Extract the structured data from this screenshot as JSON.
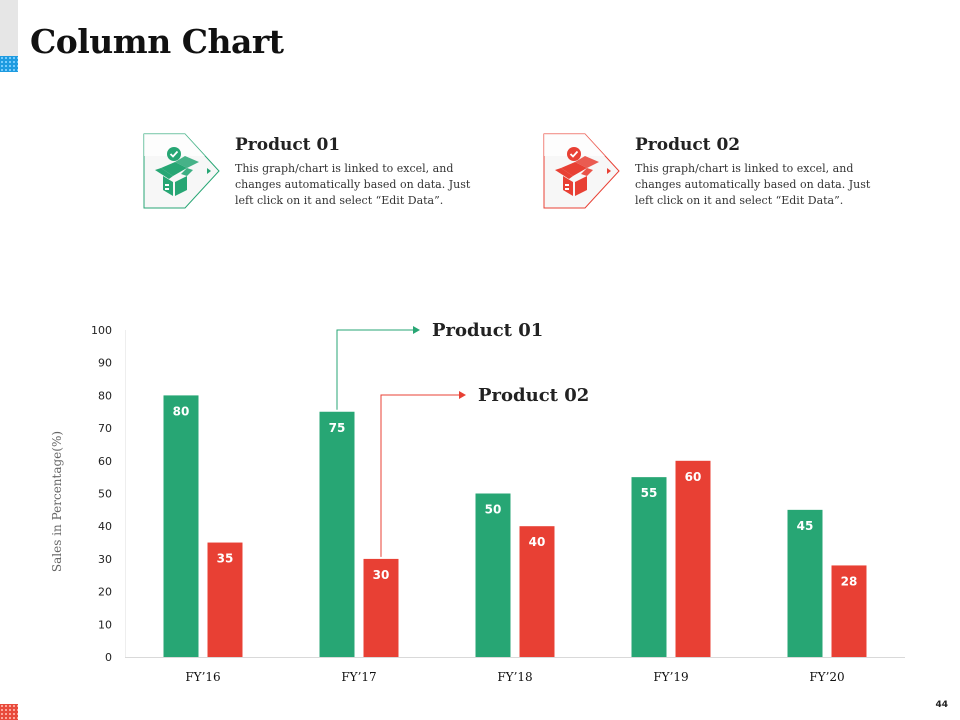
{
  "page": {
    "title": "Column Chart",
    "page_number": "44"
  },
  "cards": [
    {
      "title": "Product 01",
      "body": "This graph/chart  is linked to excel, and changes  automatically  based  on data.  Just left click on it and  select “Edit Data”.",
      "color": "#27a674",
      "icon": "open-box-check-icon"
    },
    {
      "title": "Product 02",
      "body": "This graph/chart  is linked to excel, and changes  automatically  based  on data.  Just left click on it and  select “Edit Data”.",
      "color": "#e84034",
      "icon": "open-box-check-icon"
    }
  ],
  "chart_data": {
    "type": "bar",
    "categories": [
      "FY’16",
      "FY’17",
      "FY’18",
      "FY’19",
      "FY’20"
    ],
    "series": [
      {
        "name": "Product 01",
        "values": [
          80,
          75,
          50,
          55,
          45
        ],
        "color": "#27a674"
      },
      {
        "name": "Product 02",
        "values": [
          35,
          30,
          40,
          60,
          28
        ],
        "color": "#e84034"
      }
    ],
    "ylabel": "Sales in Percentage(%)",
    "xlabel": "",
    "ylim": [
      0,
      100
    ],
    "yticks": [
      0,
      10,
      20,
      30,
      40,
      50,
      60,
      70,
      80,
      90,
      100
    ],
    "data_labels": true,
    "grid": false,
    "legend": "callouts pointing to FY’17 bars"
  }
}
